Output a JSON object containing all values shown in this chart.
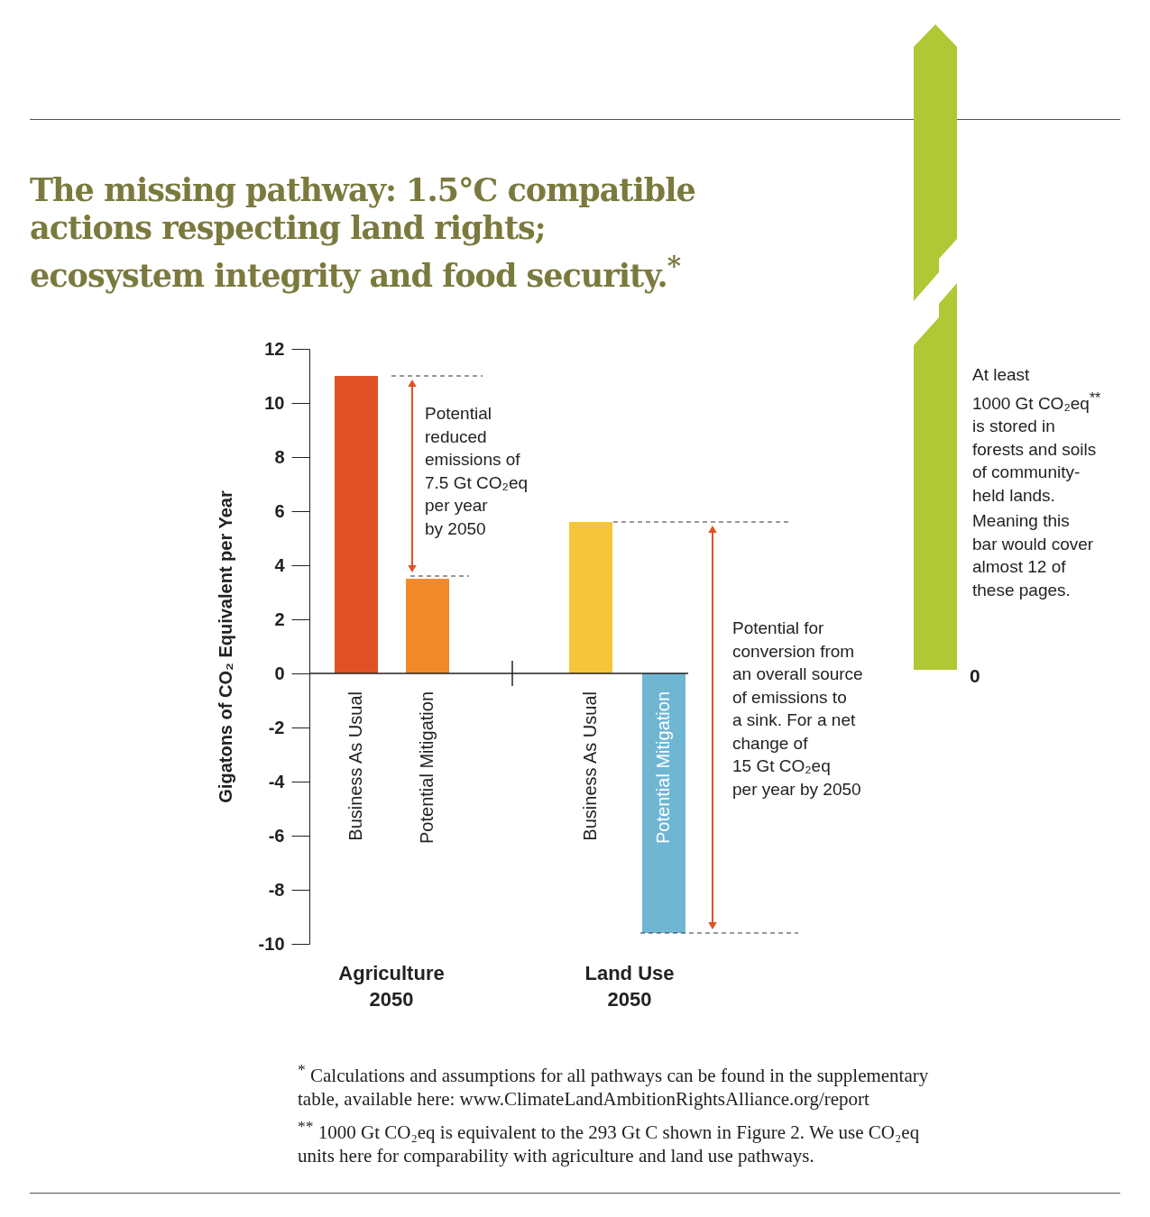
{
  "chart_data": {
    "type": "bar",
    "title": "The missing pathway: 1.5°C compatible actions respecting land rights; ecosystem integrity and food security.$^{*}$",
    "ylabel": "Gigatons of CO₂ Equivalent per Year",
    "categories": [
      "Business As Usual",
      "Potential Mitigation",
      "Business As Usual",
      "Potential Mitigation"
    ],
    "values": [
      11,
      3.5,
      5.6,
      -9.6
    ],
    "colors": [
      "#e05226",
      "#f28a2c",
      "#f6c63a",
      "#6fb6d3"
    ],
    "ylim": [
      -10,
      12
    ],
    "yticks": [
      -10,
      -8,
      -6,
      -4,
      -2,
      0,
      2,
      4,
      6,
      8,
      10,
      12
    ],
    "ref_lines": [
      {
        "axis": "y",
        "value": 11,
        "line_style": "dashed",
        "color": "#333333"
      },
      {
        "axis": "y",
        "value": 3.6,
        "line_style": "dashed",
        "color": "#333333"
      },
      {
        "axis": "y",
        "value": 5.6,
        "line_style": "dashed",
        "color": "#333333"
      },
      {
        "axis": "y",
        "value": -9.6,
        "line_style": "dashed",
        "color": "#333333"
      }
    ],
    "annotations": [
      "Potential\nreduced\nemissions of\n7.5 Gt CO₂eq\nper year\nby 2050",
      "Potential for\nconversion from\nan overall source\nof emissions to\na sink. For a net\nchange of\n15 Gt CO₂eq\nper year by 2050",
      "At least\n1000 Gt CO₂eq$^{**}$\nis stored in\nforests and soils\nof community-\nheld lands.",
      "Meaning this\nbar would cover\nalmost 12 of\nthese pages.",
      "$^{*}$ Calculations and assumptions for all pathways can be found in the supplementary\ntable, available here: www.ClimateLandAmbitionRightsAlliance.org/report",
      "$^{**}$ 1000 Gt CO₂eq is equivalent to the 293 Gt C shown in Figure 2. We use CO₂eq\nunits here for comparability with agriculture and land use pathways.",
      "Agriculture\n2050",
      "Land Use\n2050",
      "0"
    ]
  }
}
